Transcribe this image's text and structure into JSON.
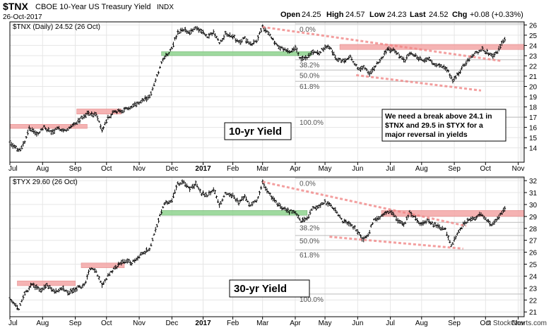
{
  "header": {
    "symbol": "$TNX",
    "description": "CBOE 10-Year US Treasury Yield",
    "exchange": "INDX",
    "date": "26-Oct-2017",
    "open_label": "Open",
    "open": "24.25",
    "high_label": "High",
    "high": "24.57",
    "low_label": "Low",
    "low": "24.23",
    "last_label": "Last",
    "last": "24.52",
    "chg_label": "Chg",
    "chg": "+0.08 (+0.33%)"
  },
  "watermark": "© StockCharts.com",
  "colors": {
    "bar": "#000000",
    "resistance_zone": "#f4a6a6",
    "support_zone": "#8fd48f",
    "trendline": "#f08080",
    "fib_line": "#bbbbbb",
    "grid": "#cccccc",
    "frame": "#000000",
    "shade": "#f0f0f0"
  },
  "chart_data": [
    {
      "type": "ohlc",
      "legend": "$TNX (Daily) 24.52 (26 Oct)",
      "title": "10-yr Yield",
      "note": "We need a break above 24.1 in $TNX and 29.5 in $TYX for a major reversal in yields",
      "ylim": [
        12.6,
        26.3
      ],
      "y_ticks": [
        14,
        15,
        16,
        17,
        18,
        19,
        20,
        21,
        22,
        23,
        24,
        25,
        26
      ],
      "x_tick_labels": [
        "Jul",
        "Aug",
        "Sep",
        "Oct",
        "Nov",
        "Dec",
        "2017",
        "Feb",
        "Mar",
        "Apr",
        "May",
        "Jun",
        "Jul",
        "Aug",
        "Sep",
        "Oct",
        "Nov"
      ],
      "x_ticks": [
        0,
        22,
        44,
        65,
        87,
        109,
        130,
        150,
        170,
        192,
        212,
        234,
        256,
        277,
        299,
        320,
        342
      ],
      "x_range": [
        0,
        346
      ],
      "fib_levels": [
        {
          "label": "0.0%",
          "value": 26.1
        },
        {
          "label": "38.2%",
          "value": 22.6
        },
        {
          "label": "50.0%",
          "value": 21.6
        },
        {
          "label": "61.8%",
          "value": 20.5
        },
        {
          "label": "100.0%",
          "value": 17.0
        }
      ],
      "fib_x": [
        192,
        346
      ],
      "resistance_zones": [
        {
          "x": [
            0,
            52
          ],
          "y": [
            15.9,
            16.3
          ]
        },
        {
          "x": [
            45,
            75
          ],
          "y": [
            17.3,
            17.8
          ]
        },
        {
          "x": [
            222,
            346
          ],
          "y": [
            23.6,
            24.1
          ]
        }
      ],
      "support_zones": [
        {
          "x": [
            102,
            203
          ],
          "y": [
            23.0,
            23.4
          ]
        }
      ],
      "trendlines": [
        {
          "x": [
            170,
            330
          ],
          "y": [
            25.8,
            22.5
          ]
        },
        {
          "x": [
            233,
            317
          ],
          "y": [
            21.1,
            19.6
          ]
        }
      ],
      "anchors": [
        [
          0,
          14.6
        ],
        [
          6,
          13.7
        ],
        [
          10,
          14.6
        ],
        [
          13,
          16.0
        ],
        [
          18,
          15.3
        ],
        [
          23,
          16.0
        ],
        [
          28,
          15.5
        ],
        [
          33,
          15.9
        ],
        [
          38,
          15.7
        ],
        [
          44,
          16.4
        ],
        [
          52,
          17.4
        ],
        [
          58,
          17.2
        ],
        [
          62,
          15.7
        ],
        [
          66,
          16.9
        ],
        [
          71,
          17.6
        ],
        [
          76,
          17.6
        ],
        [
          82,
          18.1
        ],
        [
          86,
          18.4
        ],
        [
          90,
          18.7
        ],
        [
          94,
          19.0
        ],
        [
          97,
          20.1
        ],
        [
          100,
          21.4
        ],
        [
          103,
          22.7
        ],
        [
          108,
          23.5
        ],
        [
          113,
          25.2
        ],
        [
          117,
          25.5
        ],
        [
          121,
          25.2
        ],
        [
          125,
          25.8
        ],
        [
          129,
          25.4
        ],
        [
          133,
          24.8
        ],
        [
          137,
          25.3
        ],
        [
          141,
          24.2
        ],
        [
          145,
          25.1
        ],
        [
          150,
          24.9
        ],
        [
          154,
          24.3
        ],
        [
          158,
          24.7
        ],
        [
          162,
          24.1
        ],
        [
          166,
          24.5
        ],
        [
          170,
          25.9
        ],
        [
          174,
          25.1
        ],
        [
          178,
          24.3
        ],
        [
          183,
          23.7
        ],
        [
          188,
          23.3
        ],
        [
          192,
          23.8
        ],
        [
          196,
          22.6
        ],
        [
          200,
          22.8
        ],
        [
          204,
          23.4
        ],
        [
          208,
          23.2
        ],
        [
          212,
          23.9
        ],
        [
          216,
          23.7
        ],
        [
          220,
          22.6
        ],
        [
          225,
          22.5
        ],
        [
          229,
          23.0
        ],
        [
          234,
          21.7
        ],
        [
          238,
          21.9
        ],
        [
          242,
          21.2
        ],
        [
          246,
          22.0
        ],
        [
          250,
          22.7
        ],
        [
          254,
          23.6
        ],
        [
          258,
          23.6
        ],
        [
          262,
          23.0
        ],
        [
          266,
          22.6
        ],
        [
          270,
          23.3
        ],
        [
          274,
          22.9
        ],
        [
          278,
          22.4
        ],
        [
          282,
          22.8
        ],
        [
          286,
          22.1
        ],
        [
          290,
          22.0
        ],
        [
          294,
          21.7
        ],
        [
          298,
          20.5
        ],
        [
          302,
          21.3
        ],
        [
          306,
          22.2
        ],
        [
          310,
          22.9
        ],
        [
          314,
          23.3
        ],
        [
          318,
          23.6
        ],
        [
          322,
          23.2
        ],
        [
          326,
          23.0
        ],
        [
          330,
          23.9
        ],
        [
          333,
          24.5
        ]
      ]
    },
    {
      "type": "ohlc",
      "legend": "$TYX 29.60 (26 Oct)",
      "title": "30-yr Yield",
      "ylim": [
        20.6,
        32.3
      ],
      "y_ticks": [
        21,
        22,
        23,
        24,
        25,
        26,
        27,
        28,
        29,
        30,
        31,
        32
      ],
      "x_tick_labels": [
        "Jul",
        "Aug",
        "Sep",
        "Oct",
        "Nov",
        "Dec",
        "2017",
        "Feb",
        "Mar",
        "Apr",
        "May",
        "Jun",
        "Jul",
        "Aug",
        "Sep",
        "Oct",
        "Nov"
      ],
      "x_ticks": [
        0,
        22,
        44,
        65,
        87,
        109,
        130,
        150,
        170,
        192,
        212,
        234,
        256,
        277,
        299,
        320,
        342
      ],
      "x_range": [
        0,
        346
      ],
      "fib_levels": [
        {
          "label": "0.0%",
          "value": 32.2
        },
        {
          "label": "38.2%",
          "value": 28.5
        },
        {
          "label": "50.0%",
          "value": 27.4
        },
        {
          "label": "61.8%",
          "value": 26.2
        },
        {
          "label": "100.0%",
          "value": 22.5
        }
      ],
      "fib_x": [
        192,
        346
      ],
      "resistance_zones": [
        {
          "x": [
            5,
            44
          ],
          "y": [
            23.2,
            23.6
          ]
        },
        {
          "x": [
            48,
            77
          ],
          "y": [
            24.7,
            25.1
          ]
        },
        {
          "x": [
            250,
            346
          ],
          "y": [
            29.0,
            29.5
          ]
        }
      ],
      "support_zones": [
        {
          "x": [
            102,
            200
          ],
          "y": [
            29.1,
            29.5
          ]
        }
      ],
      "trendlines": [
        {
          "x": [
            170,
            307
          ],
          "y": [
            31.9,
            28.2
          ]
        },
        {
          "x": [
            215,
            305
          ],
          "y": [
            27.3,
            26.3
          ]
        }
      ],
      "anchors": [
        [
          0,
          22.2
        ],
        [
          6,
          21.2
        ],
        [
          10,
          22.5
        ],
        [
          15,
          23.3
        ],
        [
          20,
          22.8
        ],
        [
          25,
          23.3
        ],
        [
          30,
          22.6
        ],
        [
          35,
          23.0
        ],
        [
          40,
          22.6
        ],
        [
          45,
          23.0
        ],
        [
          50,
          23.2
        ],
        [
          54,
          24.6
        ],
        [
          58,
          24.4
        ],
        [
          62,
          23.2
        ],
        [
          66,
          24.0
        ],
        [
          70,
          24.6
        ],
        [
          74,
          25.0
        ],
        [
          78,
          25.3
        ],
        [
          82,
          25.1
        ],
        [
          86,
          25.5
        ],
        [
          90,
          26.0
        ],
        [
          94,
          26.2
        ],
        [
          98,
          27.8
        ],
        [
          101,
          29.1
        ],
        [
          104,
          30.1
        ],
        [
          109,
          30.4
        ],
        [
          113,
          31.7
        ],
        [
          117,
          31.9
        ],
        [
          121,
          31.3
        ],
        [
          125,
          31.7
        ],
        [
          129,
          30.9
        ],
        [
          133,
          30.8
        ],
        [
          137,
          31.3
        ],
        [
          141,
          29.9
        ],
        [
          145,
          30.9
        ],
        [
          150,
          30.8
        ],
        [
          154,
          30.1
        ],
        [
          158,
          30.7
        ],
        [
          162,
          29.9
        ],
        [
          166,
          30.3
        ],
        [
          170,
          31.8
        ],
        [
          174,
          31.0
        ],
        [
          178,
          30.3
        ],
        [
          183,
          29.7
        ],
        [
          188,
          29.4
        ],
        [
          192,
          29.4
        ],
        [
          196,
          28.6
        ],
        [
          200,
          28.9
        ],
        [
          204,
          29.7
        ],
        [
          208,
          29.9
        ],
        [
          212,
          30.2
        ],
        [
          216,
          29.9
        ],
        [
          220,
          29.3
        ],
        [
          224,
          28.6
        ],
        [
          228,
          28.4
        ],
        [
          233,
          27.9
        ],
        [
          237,
          27.1
        ],
        [
          241,
          27.4
        ],
        [
          245,
          28.8
        ],
        [
          249,
          28.9
        ],
        [
          253,
          29.4
        ],
        [
          257,
          29.3
        ],
        [
          261,
          28.7
        ],
        [
          265,
          28.3
        ],
        [
          269,
          29.3
        ],
        [
          273,
          28.8
        ],
        [
          277,
          28.3
        ],
        [
          281,
          28.7
        ],
        [
          285,
          28.3
        ],
        [
          289,
          28.1
        ],
        [
          293,
          27.9
        ],
        [
          297,
          26.6
        ],
        [
          301,
          27.6
        ],
        [
          305,
          28.3
        ],
        [
          309,
          28.8
        ],
        [
          313,
          28.9
        ],
        [
          317,
          29.2
        ],
        [
          321,
          28.6
        ],
        [
          325,
          28.3
        ],
        [
          329,
          29.0
        ],
        [
          333,
          29.6
        ]
      ]
    }
  ]
}
